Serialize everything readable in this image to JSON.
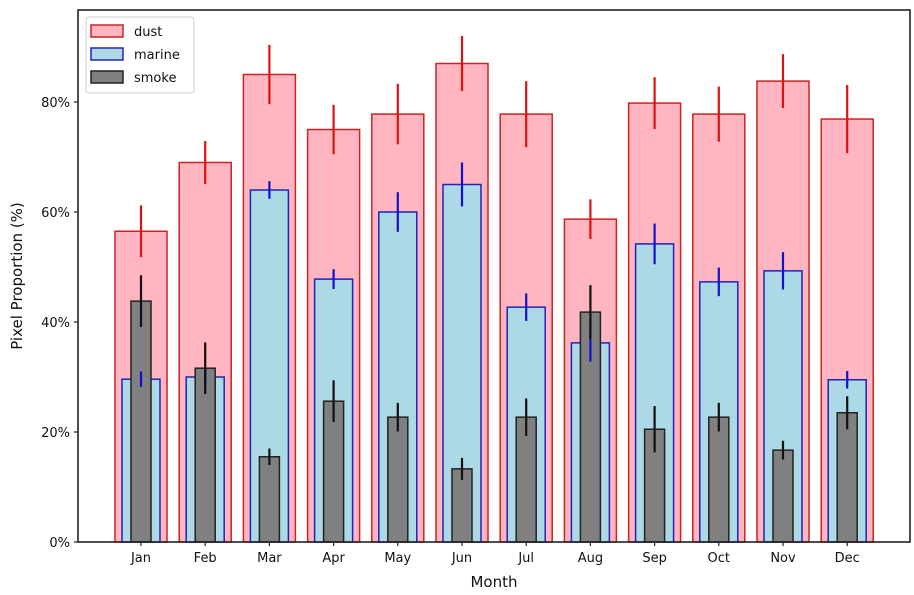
{
  "chart_data": {
    "type": "bar",
    "title": "",
    "xlabel": "Month",
    "ylabel": "Pixel Proportion (%)",
    "ylim": [
      0,
      94
    ],
    "yticks": [
      0,
      20,
      40,
      60,
      80
    ],
    "ytick_labels": [
      "0%",
      "20%",
      "40%",
      "60%",
      "80%"
    ],
    "grid": false,
    "legend_position": "top-left",
    "categories": [
      "Jan",
      "Feb",
      "Mar",
      "Apr",
      "May",
      "Jun",
      "Jul",
      "Aug",
      "Sep",
      "Oct",
      "Nov",
      "Dec"
    ],
    "series": [
      {
        "name": "dust",
        "fill": "#ffb6c1",
        "edge": "#cc2222",
        "errcolor": "#dd1111",
        "values": [
          56.5,
          69.0,
          85.0,
          75.0,
          77.8,
          87.0,
          77.8,
          58.7,
          79.8,
          77.8,
          83.8,
          76.9
        ],
        "errors": [
          4.7,
          3.9,
          5.4,
          4.5,
          5.5,
          5.0,
          6.0,
          3.6,
          4.7,
          5.0,
          4.9,
          6.2
        ]
      },
      {
        "name": "marine",
        "fill": "#add8e6",
        "edge": "#2222bb",
        "errcolor": "#1111cc",
        "values": [
          29.6,
          30.0,
          64.0,
          47.8,
          60.0,
          65.0,
          42.7,
          36.2,
          54.2,
          47.3,
          49.3,
          29.5
        ],
        "errors": [
          1.4,
          1.4,
          1.6,
          1.8,
          3.6,
          4.0,
          2.5,
          3.4,
          3.7,
          2.6,
          3.4,
          1.6
        ]
      },
      {
        "name": "smoke",
        "fill": "#808080",
        "edge": "#222222",
        "errcolor": "#111111",
        "values": [
          43.8,
          31.6,
          15.5,
          25.6,
          22.7,
          13.3,
          22.7,
          41.8,
          20.5,
          22.7,
          16.7,
          23.5
        ],
        "errors": [
          4.7,
          4.7,
          1.5,
          3.8,
          2.6,
          2.0,
          3.4,
          4.9,
          4.2,
          2.6,
          1.7,
          3.0
        ]
      }
    ]
  }
}
